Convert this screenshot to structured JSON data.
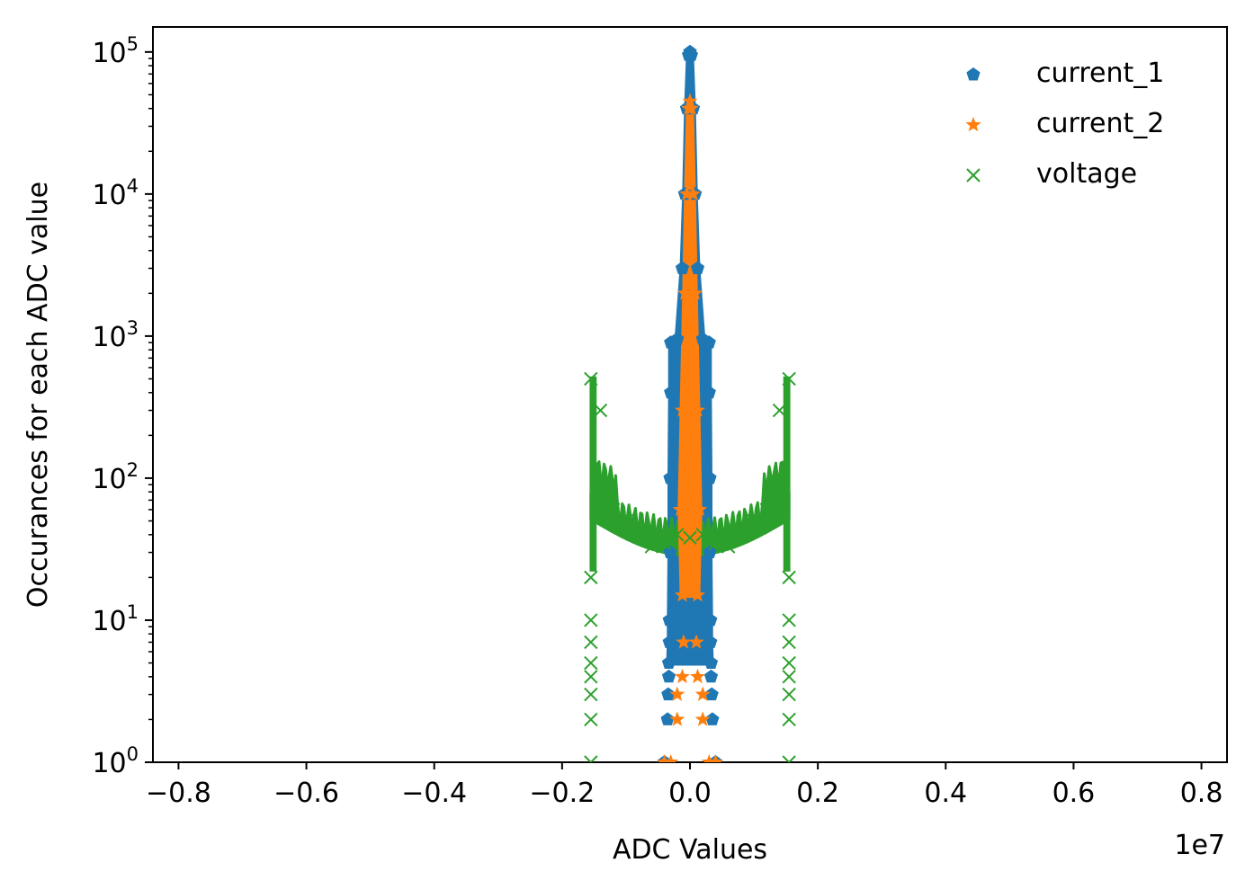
{
  "chart_data": {
    "type": "scatter",
    "title": "",
    "xlabel": "ADC Values",
    "ylabel": "Occurances for each ADC value",
    "x_offset_label": "1e7",
    "x_multiplier": 10000000,
    "xlim": [
      -0.84,
      0.84
    ],
    "ylim": [
      1,
      150000
    ],
    "yscale": "log",
    "xticks": [
      -0.8,
      -0.6,
      -0.4,
      -0.2,
      0.0,
      0.2,
      0.4,
      0.6,
      0.8
    ],
    "xtick_labels": [
      "−0.8",
      "−0.6",
      "−0.4",
      "−0.2",
      "0.0",
      "0.2",
      "0.4",
      "0.6",
      "0.8"
    ],
    "yticks": [
      {
        "value": 1,
        "base": "10",
        "exp": "0"
      },
      {
        "value": 10,
        "base": "10",
        "exp": "1"
      },
      {
        "value": 100,
        "base": "10",
        "exp": "2"
      },
      {
        "value": 1000,
        "base": "10",
        "exp": "3"
      },
      {
        "value": 10000,
        "base": "10",
        "exp": "4"
      },
      {
        "value": 100000,
        "base": "10",
        "exp": "5"
      }
    ],
    "grid": false,
    "legend_position": "top-right",
    "series": [
      {
        "name": "current_1",
        "marker": "pentagon",
        "color": "#1f77b4",
        "points": [
          {
            "x": -0.04,
            "y": 1
          },
          {
            "x": 0.04,
            "y": 1
          },
          {
            "x": -0.035,
            "y": 2
          },
          {
            "x": 0.035,
            "y": 2
          },
          {
            "x": -0.034,
            "y": 3
          },
          {
            "x": 0.034,
            "y": 3
          },
          {
            "x": -0.033,
            "y": 4
          },
          {
            "x": 0.033,
            "y": 4
          },
          {
            "x": -0.033,
            "y": 5
          },
          {
            "x": 0.033,
            "y": 5
          },
          {
            "x": -0.032,
            "y": 7
          },
          {
            "x": 0.032,
            "y": 7
          },
          {
            "x": -0.032,
            "y": 10
          },
          {
            "x": 0.032,
            "y": 10
          },
          {
            "x": -0.031,
            "y": 30
          },
          {
            "x": 0.031,
            "y": 30
          },
          {
            "x": -0.031,
            "y": 100
          },
          {
            "x": 0.031,
            "y": 100
          },
          {
            "x": -0.03,
            "y": 400
          },
          {
            "x": 0.03,
            "y": 400
          },
          {
            "x": -0.03,
            "y": 900
          },
          {
            "x": 0.03,
            "y": 900
          },
          {
            "x": -0.02,
            "y": 950
          },
          {
            "x": 0.02,
            "y": 950
          },
          {
            "x": -0.012,
            "y": 3000
          },
          {
            "x": 0.012,
            "y": 3000
          },
          {
            "x": -0.008,
            "y": 10000
          },
          {
            "x": 0.008,
            "y": 10000
          },
          {
            "x": -0.005,
            "y": 40000
          },
          {
            "x": 0.005,
            "y": 40000
          },
          {
            "x": -0.002,
            "y": 95000
          },
          {
            "x": 0.0,
            "y": 100000
          },
          {
            "x": 0.002,
            "y": 95000
          }
        ]
      },
      {
        "name": "current_2",
        "marker": "star",
        "color": "#ff7f0e",
        "points": [
          {
            "x": -0.04,
            "y": 1
          },
          {
            "x": -0.03,
            "y": 1
          },
          {
            "x": 0.03,
            "y": 1
          },
          {
            "x": 0.04,
            "y": 1
          },
          {
            "x": -0.02,
            "y": 2
          },
          {
            "x": 0.02,
            "y": 2
          },
          {
            "x": -0.02,
            "y": 3
          },
          {
            "x": 0.02,
            "y": 3
          },
          {
            "x": -0.012,
            "y": 4
          },
          {
            "x": 0.012,
            "y": 4
          },
          {
            "x": -0.01,
            "y": 7
          },
          {
            "x": 0.01,
            "y": 7
          },
          {
            "x": -0.012,
            "y": 15
          },
          {
            "x": 0.012,
            "y": 15
          },
          {
            "x": -0.015,
            "y": 60
          },
          {
            "x": 0.015,
            "y": 60
          },
          {
            "x": -0.012,
            "y": 300
          },
          {
            "x": 0.012,
            "y": 300
          },
          {
            "x": -0.008,
            "y": 2000
          },
          {
            "x": 0.008,
            "y": 2000
          },
          {
            "x": -0.005,
            "y": 10000
          },
          {
            "x": 0.005,
            "y": 10000
          },
          {
            "x": -0.002,
            "y": 40000
          },
          {
            "x": 0.0,
            "y": 45000
          },
          {
            "x": 0.002,
            "y": 40000
          }
        ]
      },
      {
        "name": "voltage",
        "marker": "x",
        "color": "#2ca02c",
        "points": [
          {
            "x": -0.155,
            "y": 1
          },
          {
            "x": 0.155,
            "y": 1
          },
          {
            "x": -0.155,
            "y": 2
          },
          {
            "x": 0.155,
            "y": 2
          },
          {
            "x": -0.155,
            "y": 3
          },
          {
            "x": 0.155,
            "y": 3
          },
          {
            "x": -0.155,
            "y": 4
          },
          {
            "x": 0.155,
            "y": 4
          },
          {
            "x": -0.155,
            "y": 5
          },
          {
            "x": 0.155,
            "y": 5
          },
          {
            "x": -0.155,
            "y": 7
          },
          {
            "x": 0.155,
            "y": 7
          },
          {
            "x": -0.155,
            "y": 10
          },
          {
            "x": 0.155,
            "y": 10
          },
          {
            "x": -0.155,
            "y": 20
          },
          {
            "x": 0.155,
            "y": 20
          },
          {
            "x": -0.155,
            "y": 500
          },
          {
            "x": 0.155,
            "y": 500
          },
          {
            "x": -0.14,
            "y": 300
          },
          {
            "x": 0.14,
            "y": 300
          },
          {
            "x": -0.13,
            "y": 90
          },
          {
            "x": 0.13,
            "y": 90
          },
          {
            "x": -0.12,
            "y": 60
          },
          {
            "x": 0.12,
            "y": 60
          },
          {
            "x": -0.1,
            "y": 50
          },
          {
            "x": 0.1,
            "y": 50
          },
          {
            "x": -0.08,
            "y": 40
          },
          {
            "x": 0.08,
            "y": 40
          },
          {
            "x": -0.06,
            "y": 33
          },
          {
            "x": 0.06,
            "y": 33
          },
          {
            "x": -0.04,
            "y": 35
          },
          {
            "x": 0.04,
            "y": 35
          },
          {
            "x": -0.02,
            "y": 40
          },
          {
            "x": 0.02,
            "y": 40
          },
          {
            "x": 0.0,
            "y": 38
          }
        ]
      }
    ]
  }
}
